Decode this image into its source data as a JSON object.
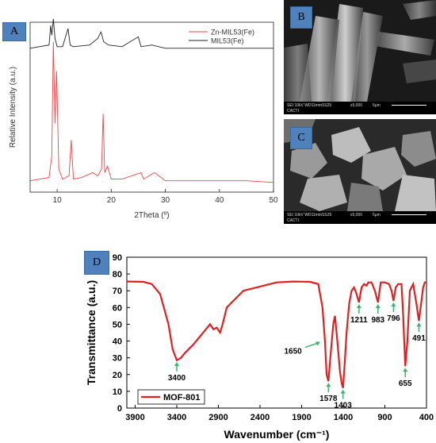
{
  "chart_data": [
    {
      "type": "line",
      "panel_label": "A",
      "xlabel": "2Theta (º)",
      "ylabel": "Relative Intensity (a.u.)",
      "xlim": [
        5,
        50
      ],
      "xticks": [
        10,
        20,
        30,
        40,
        50
      ],
      "legend_position": "top-right",
      "series": [
        {
          "name": "Zn-MIL53(Fe)",
          "color": "#e8474b",
          "x": [
            5,
            8.5,
            9.0,
            9.3,
            9.6,
            9.9,
            10.3,
            11,
            12.2,
            12.6,
            13,
            14.5,
            16.6,
            17.5,
            18.2,
            18.5,
            18.8,
            19.3,
            20,
            22,
            25.5,
            26,
            28,
            30,
            35,
            40,
            45,
            50
          ],
          "y": [
            0.05,
            0.07,
            0.2,
            0.9,
            0.4,
            0.72,
            0.12,
            0.06,
            0.08,
            0.3,
            0.06,
            0.07,
            0.1,
            0.08,
            0.12,
            0.46,
            0.1,
            0.14,
            0.06,
            0.06,
            0.1,
            0.06,
            0.1,
            0.05,
            0.05,
            0.05,
            0.05,
            0.04
          ]
        },
        {
          "name": "MIL53(Fe)",
          "color": "#222222",
          "x": [
            5,
            8.5,
            8.8,
            9.0,
            9.3,
            9.6,
            10,
            11,
            12.0,
            12.4,
            13,
            16,
            17.5,
            18.1,
            18.6,
            19.5,
            22,
            25.0,
            25.5,
            27.5,
            30,
            35,
            40,
            45,
            50
          ],
          "y": [
            0.86,
            0.88,
            1.0,
            0.94,
            1.04,
            0.92,
            0.87,
            0.87,
            0.98,
            0.88,
            0.87,
            0.88,
            0.92,
            0.96,
            0.9,
            0.88,
            0.87,
            0.93,
            0.87,
            0.88,
            0.86,
            0.86,
            0.86,
            0.86,
            0.86
          ]
        }
      ]
    },
    {
      "type": "line",
      "panel_label": "D",
      "xlabel": "Wavenumber (cm⁻¹)",
      "ylabel": "Transmittance (a.u.)",
      "xlim": [
        4000,
        400
      ],
      "xticks": [
        3900,
        3400,
        2900,
        2400,
        1900,
        1400,
        900,
        400
      ],
      "ylim": [
        0,
        90
      ],
      "yticks": [
        0,
        10,
        20,
        30,
        40,
        50,
        60,
        70,
        80,
        90
      ],
      "legend_position": "bottom-left",
      "series": [
        {
          "name": "MOF-801",
          "color": "#e02020",
          "x": [
            4000,
            3800,
            3700,
            3600,
            3500,
            3450,
            3400,
            3350,
            3300,
            3200,
            3100,
            3000,
            2960,
            2920,
            2880,
            2850,
            2800,
            2600,
            2200,
            2000,
            1800,
            1700,
            1650,
            1620,
            1600,
            1578,
            1555,
            1520,
            1500,
            1480,
            1440,
            1420,
            1403,
            1385,
            1360,
            1330,
            1300,
            1270,
            1240,
            1211,
            1180,
            1150,
            1120,
            1100,
            1060,
            1020,
            983,
            950,
            900,
            850,
            820,
            796,
            770,
            740,
            700,
            680,
            655,
            630,
            600,
            560,
            520,
            491,
            470,
            440,
            420,
            400
          ],
          "y": [
            75.5,
            75.3,
            74,
            68,
            50,
            35,
            28.5,
            30,
            33,
            38,
            44,
            50,
            47,
            48,
            45,
            50,
            60,
            70,
            75,
            75.5,
            75.3,
            74,
            60,
            40,
            20,
            16,
            30,
            50,
            55,
            45,
            22,
            15,
            12,
            25,
            45,
            62,
            70,
            72,
            68,
            63,
            72,
            74,
            73,
            75,
            75,
            70,
            63,
            75,
            75,
            74,
            70,
            64,
            72,
            74,
            74,
            55,
            25,
            40,
            70,
            74,
            62,
            52,
            60,
            72,
            75,
            75
          ]
        }
      ],
      "annotations": [
        {
          "label": "3400",
          "x": 3400,
          "y": 28.5,
          "dir": "below"
        },
        {
          "label": "1650",
          "x": 1650,
          "y": 40,
          "dir": "left"
        },
        {
          "label": "1578",
          "x": 1578,
          "y": 16,
          "dir": "below"
        },
        {
          "label": "1403",
          "x": 1403,
          "y": 12,
          "dir": "below"
        },
        {
          "label": "1211",
          "x": 1211,
          "y": 63,
          "dir": "below"
        },
        {
          "label": "983",
          "x": 983,
          "y": 63,
          "dir": "below"
        },
        {
          "label": "796",
          "x": 796,
          "y": 64,
          "dir": "below"
        },
        {
          "label": "655",
          "x": 655,
          "y": 25,
          "dir": "below"
        },
        {
          "label": "491",
          "x": 491,
          "y": 52,
          "dir": "below"
        }
      ]
    }
  ],
  "panels": {
    "B": {
      "label": "B",
      "info": "SEI   10kV   WD11mmSS25",
      "mag": "x5,000",
      "scale": "5μm",
      "org": "CACTI"
    },
    "C": {
      "label": "C",
      "info": "SEI   10kV   WD11mmSS25",
      "mag": "x5,000",
      "scale": "5μm",
      "org": "CACTI"
    }
  }
}
